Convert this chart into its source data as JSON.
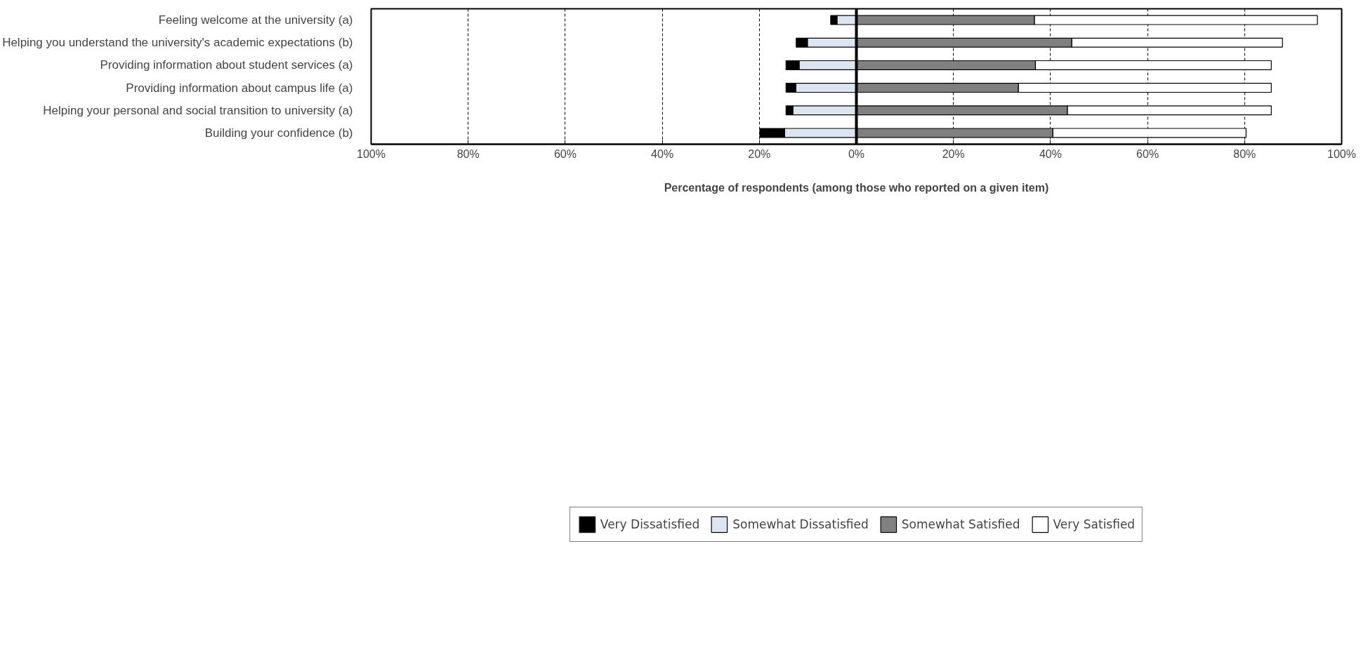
{
  "chart_data": {
    "type": "bar",
    "orientation": "horizontal",
    "stacked": true,
    "categories": [
      "Feeling welcome at the university (a)",
      "Helping you understand the university's academic expectations (b)",
      "Providing information about student services (a)",
      "Providing information about campus life (a)",
      "Helping your personal and social transition to university (a)",
      "Building your confidence (b)"
    ],
    "series": [
      {
        "name": "Somewhat Dissatisfied",
        "color": "#dce6f2",
        "values": [
          -4.0,
          -10.1,
          -11.8,
          -12.5,
          -13.1,
          -14.8
        ]
      },
      {
        "name": "Very Dissatisfied",
        "color": "#000000",
        "values": [
          -1.3,
          -2.3,
          -2.7,
          -2.0,
          -1.4,
          -5.1
        ]
      },
      {
        "name": "Somewhat Satisfied",
        "color": "#808080",
        "values": [
          36.7,
          44.4,
          36.9,
          33.4,
          43.5,
          40.5
        ]
      },
      {
        "name": "Very Satisfied",
        "color": "#ffffff",
        "values": [
          58.3,
          43.4,
          48.6,
          52.1,
          42.0,
          39.8
        ]
      }
    ],
    "xlabel": "Percentage of respondents (among those who reported on a given item)",
    "xlim": [
      -100,
      100
    ],
    "xticks": [
      {
        "value": -100,
        "label": "100%"
      },
      {
        "value": -80,
        "label": "80%"
      },
      {
        "value": -60,
        "label": "60%"
      },
      {
        "value": -40,
        "label": "40%"
      },
      {
        "value": -20,
        "label": "20%"
      },
      {
        "value": 0,
        "label": "0%"
      },
      {
        "value": 20,
        "label": "20%"
      },
      {
        "value": 40,
        "label": "40%"
      },
      {
        "value": 60,
        "label": "60%"
      },
      {
        "value": 80,
        "label": "80%"
      },
      {
        "value": 100,
        "label": "100%"
      }
    ],
    "ref_lines": [
      {
        "axis": "x",
        "value": 0,
        "label": null
      }
    ],
    "grid": "x",
    "legend": "bottom"
  }
}
